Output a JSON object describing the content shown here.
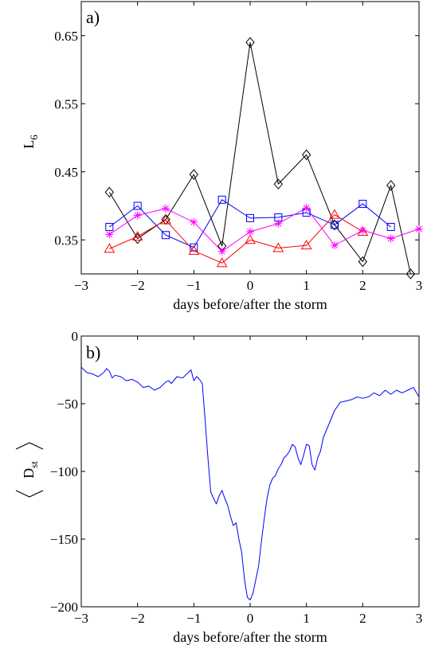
{
  "chart_data": [
    {
      "type": "line",
      "panel_label": "a)",
      "xlabel": "days before/after the storm",
      "ylabel": "L",
      "ylabel_subscript": "6",
      "xlim": [
        -3,
        3
      ],
      "ylim": [
        0.3,
        0.7
      ],
      "xticks": [
        -3,
        -2,
        -1,
        0,
        1,
        2,
        3
      ],
      "xtick_labels": [
        "−3",
        "−2",
        "−1",
        "0",
        "1",
        "2",
        "3"
      ],
      "yticks": [
        0.35,
        0.45,
        0.55,
        0.65
      ],
      "ytick_labels": [
        "0.35",
        "0.45",
        "0.55",
        "0.65"
      ],
      "grid": false,
      "series": [
        {
          "marker": "diamond",
          "color": "#000000",
          "x": [
            -2.5,
            -2.0,
            -1.5,
            -1.0,
            -0.5,
            0.0,
            0.5,
            1.0,
            1.5,
            2.0,
            2.5,
            2.85
          ],
          "values": [
            0.42,
            0.352,
            0.38,
            0.446,
            0.341,
            0.64,
            0.432,
            0.475,
            0.372,
            0.318,
            0.43,
            0.3
          ]
        },
        {
          "marker": "square",
          "color": "#0000ff",
          "x": [
            -2.5,
            -2.0,
            -1.5,
            -1.0,
            -0.5,
            0.0,
            0.5,
            1.0,
            1.5,
            2.0,
            2.5
          ],
          "values": [
            0.369,
            0.4,
            0.357,
            0.339,
            0.409,
            0.382,
            0.383,
            0.39,
            0.372,
            0.403,
            0.369
          ]
        },
        {
          "marker": "triangle",
          "color": "#ff0000",
          "x": [
            -2.5,
            -2.0,
            -1.5,
            -1.0,
            -0.5,
            0.0,
            0.5,
            1.0,
            1.5,
            2.0
          ],
          "values": [
            0.337,
            0.355,
            0.379,
            0.334,
            0.316,
            0.35,
            0.338,
            0.342,
            0.387,
            0.362
          ]
        },
        {
          "marker": "asterisk",
          "color": "#ff00ff",
          "x": [
            -2.5,
            -2.0,
            -1.5,
            -1.0,
            -0.5,
            0.0,
            0.5,
            1.0,
            1.5,
            2.0,
            2.5,
            3.0
          ],
          "values": [
            0.358,
            0.386,
            0.396,
            0.376,
            0.333,
            0.362,
            0.374,
            0.397,
            0.342,
            0.364,
            0.352,
            0.366
          ]
        }
      ]
    },
    {
      "type": "line",
      "panel_label": "b)",
      "xlabel": "days before/after the storm",
      "ylabel": "D",
      "ylabel_subscript": "st",
      "xlim": [
        -3,
        3
      ],
      "ylim": [
        -200,
        0
      ],
      "xticks": [
        -3,
        -2,
        -1,
        0,
        1,
        2,
        3
      ],
      "xtick_labels": [
        "−3",
        "−2",
        "−1",
        "0",
        "1",
        "2",
        "3"
      ],
      "yticks": [
        0,
        -50,
        -100,
        -150,
        -200
      ],
      "ytick_labels": [
        "0",
        "−50",
        "−100",
        "−150",
        "−200"
      ],
      "grid": false,
      "series": [
        {
          "color": "#0000ff",
          "x": [
            -3.0,
            -2.9,
            -2.8,
            -2.7,
            -2.6,
            -2.55,
            -2.5,
            -2.45,
            -2.4,
            -2.3,
            -2.2,
            -2.1,
            -2.0,
            -1.9,
            -1.8,
            -1.7,
            -1.6,
            -1.5,
            -1.45,
            -1.4,
            -1.3,
            -1.2,
            -1.1,
            -1.05,
            -1.0,
            -0.95,
            -0.9,
            -0.85,
            -0.8,
            -0.75,
            -0.7,
            -0.65,
            -0.6,
            -0.55,
            -0.5,
            -0.45,
            -0.4,
            -0.35,
            -0.3,
            -0.25,
            -0.2,
            -0.15,
            -0.1,
            -0.05,
            0.0,
            0.05,
            0.1,
            0.15,
            0.2,
            0.25,
            0.3,
            0.35,
            0.4,
            0.45,
            0.5,
            0.55,
            0.6,
            0.65,
            0.7,
            0.75,
            0.8,
            0.85,
            0.9,
            0.95,
            1.0,
            1.05,
            1.1,
            1.15,
            1.2,
            1.25,
            1.3,
            1.35,
            1.4,
            1.5,
            1.6,
            1.7,
            1.8,
            1.9,
            2.0,
            2.1,
            2.2,
            2.3,
            2.4,
            2.5,
            2.6,
            2.7,
            2.8,
            2.9,
            3.0
          ],
          "values": [
            -23,
            -27,
            -28,
            -30,
            -27,
            -24,
            -26,
            -31,
            -29,
            -30,
            -33,
            -32,
            -34,
            -38,
            -37,
            -40,
            -38,
            -34,
            -33,
            -35,
            -30,
            -31,
            -27,
            -25,
            -33,
            -30,
            -32,
            -35,
            -62,
            -90,
            -115,
            -120,
            -124,
            -118,
            -114,
            -120,
            -125,
            -133,
            -140,
            -138,
            -150,
            -160,
            -180,
            -193,
            -195,
            -190,
            -180,
            -170,
            -152,
            -135,
            -120,
            -110,
            -105,
            -103,
            -98,
            -95,
            -90,
            -88,
            -85,
            -80,
            -82,
            -90,
            -95,
            -88,
            -80,
            -81,
            -95,
            -99,
            -90,
            -85,
            -75,
            -70,
            -65,
            -55,
            -49,
            -48,
            -47,
            -45,
            -46,
            -45,
            -42,
            -44,
            -40,
            -43,
            -40,
            -42,
            -40,
            -38,
            -45
          ]
        }
      ]
    }
  ]
}
